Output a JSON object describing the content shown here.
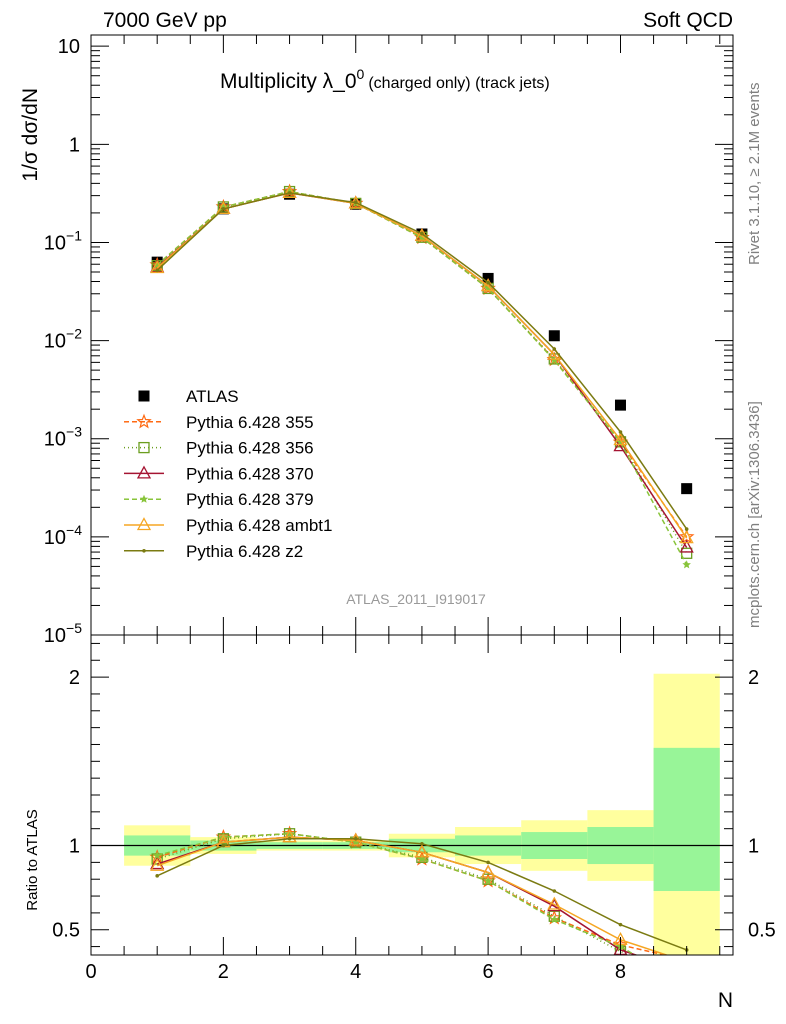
{
  "header": {
    "left": "7000 GeV pp",
    "right": "Soft QCD"
  },
  "side_text": {
    "top": "Rivet 3.1.10, ≥ 2.1M events",
    "bottom": "mcplots.cern.ch [arXiv:1306.3436]"
  },
  "analysis_id": "ATLAS_2011_I919017",
  "colors": {
    "ATLAS": "#000000",
    "355": "#ff6a13",
    "356": "#6b9e1f",
    "370": "#a51432",
    "379": "#88c43a",
    "ambt1": "#f5a623",
    "z2": "#7b7b12",
    "band_inner": "#98f598",
    "band_outer": "#ffff9e"
  },
  "chart_data": [
    {
      "type": "line",
      "title_main": "Multiplicity λ_0",
      "title_sup": "0",
      "title_sub": "(charged only) (track jets)",
      "ylabel": "1/σ dσ/dN",
      "yscale": "log",
      "ylim": [
        1e-05,
        13
      ],
      "xlim": [
        0,
        9.7
      ],
      "ytick_labels": [
        {
          "value": 10,
          "base": "10",
          "exp": ""
        },
        {
          "value": 1,
          "base": "1",
          "exp": ""
        },
        {
          "value": 0.1,
          "base": "10",
          "exp": "−1"
        },
        {
          "value": 0.01,
          "base": "10",
          "exp": "−2"
        },
        {
          "value": 0.001,
          "base": "10",
          "exp": "−3"
        },
        {
          "value": 0.0001,
          "base": "10",
          "exp": "−4"
        },
        {
          "value": 1e-05,
          "base": "10",
          "exp": "−5"
        }
      ],
      "x": [
        1,
        2,
        3,
        4,
        5,
        6,
        7,
        8,
        9
      ],
      "series": [
        {
          "name": "ATLAS",
          "key": "ATLAS",
          "marker": "square",
          "values": [
            0.063,
            0.22,
            0.31,
            0.245,
            0.122,
            0.043,
            0.0112,
            0.0022,
            0.00031
          ]
        },
        {
          "name": "Pythia 6.428 355",
          "key": "355",
          "marker": "star",
          "dash": "5,3",
          "values": [
            0.059,
            0.23,
            0.33,
            0.25,
            0.112,
            0.034,
            0.0064,
            0.00092,
            0.0001
          ]
        },
        {
          "name": "Pythia 6.428 356",
          "key": "356",
          "marker": "square-open",
          "dash": "1,3",
          "values": [
            0.058,
            0.23,
            0.33,
            0.25,
            0.113,
            0.034,
            0.0065,
            0.00093,
            6.8e-05
          ]
        },
        {
          "name": "Pythia 6.428 370",
          "key": "370",
          "marker": "triangle-open",
          "dash": "",
          "values": [
            0.056,
            0.22,
            0.32,
            0.25,
            0.117,
            0.036,
            0.0072,
            0.00084,
            7.8e-05
          ]
        },
        {
          "name": "Pythia 6.428 379",
          "key": "379",
          "marker": "star-small",
          "dash": "5,3",
          "values": [
            0.059,
            0.23,
            0.33,
            0.25,
            0.112,
            0.034,
            0.0063,
            0.00092,
            5.2e-05
          ]
        },
        {
          "name": "Pythia 6.428 ambt1",
          "key": "ambt1",
          "marker": "triangle-open",
          "dash": "",
          "values": [
            0.055,
            0.22,
            0.32,
            0.25,
            0.117,
            0.036,
            0.0072,
            0.00097,
            9.7e-05
          ]
        },
        {
          "name": "Pythia 6.428 z2",
          "key": "z2",
          "marker": "dot",
          "dash": "",
          "values": [
            0.052,
            0.22,
            0.32,
            0.255,
            0.123,
            0.039,
            0.0082,
            0.00117,
            0.00012
          ]
        }
      ]
    },
    {
      "type": "line",
      "ylabel": "Ratio to ATLAS",
      "xlabel": "N",
      "ylim": [
        0.35,
        2.25
      ],
      "xlim": [
        0,
        9.7
      ],
      "xtick_labels": [
        "0",
        "2",
        "4",
        "6",
        "8"
      ],
      "ytick_labels": [
        "0.5",
        "1",
        "2"
      ],
      "reference": 1,
      "bands": [
        {
          "x0": 0.5,
          "x1": 1.5,
          "inner": [
            0.94,
            1.06
          ],
          "outer": [
            0.88,
            1.12
          ]
        },
        {
          "x0": 1.5,
          "x1": 2.5,
          "inner": [
            0.97,
            1.03
          ],
          "outer": [
            0.95,
            1.05
          ]
        },
        {
          "x0": 2.5,
          "x1": 3.5,
          "inner": [
            0.98,
            1.02
          ],
          "outer": [
            0.97,
            1.03
          ]
        },
        {
          "x0": 3.5,
          "x1": 4.5,
          "inner": [
            0.98,
            1.02
          ],
          "outer": [
            0.97,
            1.03
          ]
        },
        {
          "x0": 4.5,
          "x1": 5.5,
          "inner": [
            0.96,
            1.04
          ],
          "outer": [
            0.93,
            1.07
          ]
        },
        {
          "x0": 5.5,
          "x1": 6.5,
          "inner": [
            0.94,
            1.06
          ],
          "outer": [
            0.89,
            1.11
          ]
        },
        {
          "x0": 6.5,
          "x1": 7.5,
          "inner": [
            0.92,
            1.08
          ],
          "outer": [
            0.85,
            1.15
          ]
        },
        {
          "x0": 7.5,
          "x1": 8.5,
          "inner": [
            0.89,
            1.11
          ],
          "outer": [
            0.79,
            1.21
          ]
        },
        {
          "x0": 8.5,
          "x1": 9.5,
          "inner": [
            0.73,
            1.58
          ],
          "outer": [
            0.3,
            2.02
          ]
        }
      ],
      "series": [
        {
          "key": "355",
          "marker": "star",
          "dash": "5,3",
          "values": [
            0.93,
            1.05,
            1.07,
            1.02,
            0.92,
            0.79,
            0.57,
            0.41,
            0.32
          ]
        },
        {
          "key": "356",
          "marker": "square-open",
          "dash": "1,3",
          "values": [
            0.92,
            1.04,
            1.07,
            1.02,
            0.93,
            0.8,
            0.58,
            0.37,
            0.22
          ]
        },
        {
          "key": "370",
          "marker": "triangle-open",
          "dash": "",
          "values": [
            0.89,
            1.02,
            1.05,
            1.03,
            0.96,
            0.84,
            0.64,
            0.38,
            0.25
          ]
        },
        {
          "key": "379",
          "marker": "star-small",
          "dash": "5,3",
          "values": [
            0.94,
            1.05,
            1.07,
            1.02,
            0.92,
            0.79,
            0.56,
            0.4,
            0.17
          ]
        },
        {
          "key": "ambt1",
          "marker": "triangle-open",
          "dash": "",
          "values": [
            0.88,
            1.02,
            1.05,
            1.03,
            0.96,
            0.84,
            0.65,
            0.44,
            0.31
          ]
        },
        {
          "key": "z2",
          "marker": "dot",
          "dash": "",
          "values": [
            0.82,
            1.0,
            1.04,
            1.04,
            1.01,
            0.9,
            0.73,
            0.53,
            0.38
          ]
        }
      ]
    }
  ]
}
